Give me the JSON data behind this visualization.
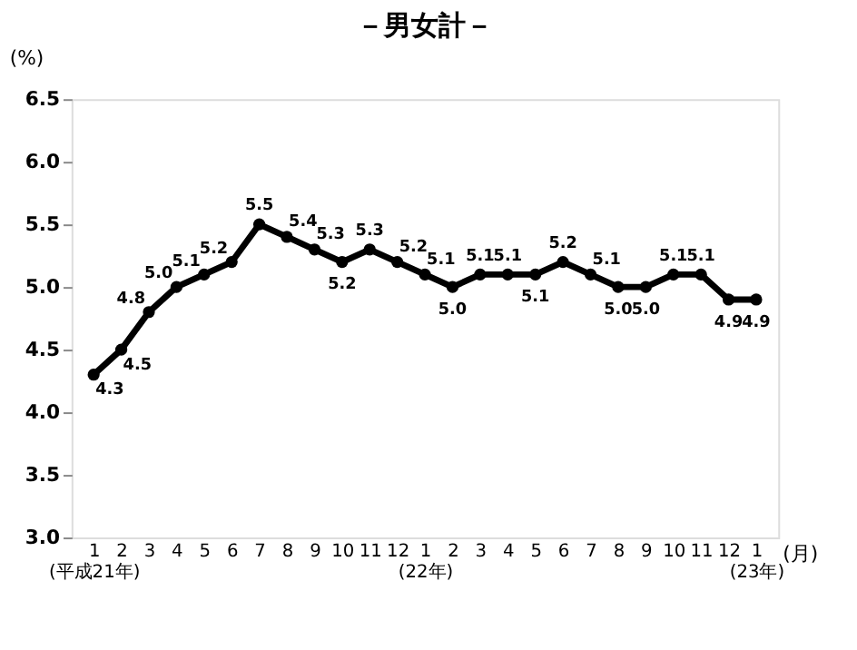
{
  "chart_data": {
    "type": "line",
    "title": "－男女計－",
    "ylabel": "(%)",
    "xlabel": "(月)",
    "categories": [
      "1\n(平成21年)",
      "2",
      "3",
      "4",
      "5",
      "6",
      "7",
      "8",
      "9",
      "10",
      "11",
      "12",
      "1\n(22年)",
      "2",
      "3",
      "4",
      "5",
      "6",
      "7",
      "8",
      "9",
      "10",
      "11",
      "12",
      "1\n(23年)"
    ],
    "series": [
      {
        "color": "#000000",
        "values": [
          4.3,
          4.5,
          4.8,
          5.0,
          5.1,
          5.2,
          5.5,
          5.4,
          5.3,
          5.2,
          5.3,
          5.2,
          5.1,
          5.0,
          5.1,
          5.1,
          5.1,
          5.2,
          5.1,
          5.0,
          5.0,
          5.1,
          5.1,
          4.9,
          4.9
        ],
        "value_labels": [
          "4.3",
          "4.5",
          "4.8",
          "5.0",
          "5.1",
          "5.2",
          "5.5",
          "5.4",
          "5.3",
          "5.2",
          "5.3",
          "5.2",
          "5.1",
          "5.0",
          "5.1",
          "5.1",
          "5.1",
          "5.2",
          "5.1",
          "5.0",
          "5.0",
          "5.1",
          "5.1",
          "4.9",
          "4.9"
        ]
      }
    ],
    "ylim": [
      3.0,
      6.5
    ],
    "yticks": [
      {
        "value": 3.0,
        "label": "3.0"
      },
      {
        "value": 3.5,
        "label": "3.5"
      },
      {
        "value": 4.0,
        "label": "4.0"
      },
      {
        "value": 4.5,
        "label": "4.5"
      },
      {
        "value": 5.0,
        "label": "5.0"
      },
      {
        "value": 5.5,
        "label": "5.5"
      },
      {
        "value": 6.0,
        "label": "6.0"
      },
      {
        "value": 6.5,
        "label": "6.5"
      }
    ],
    "grid": false,
    "marker": "circle",
    "line_style": "solid"
  }
}
